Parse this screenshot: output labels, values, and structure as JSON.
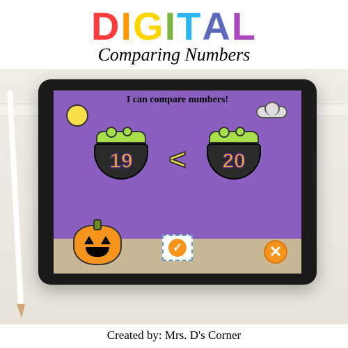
{
  "header": {
    "title_letters": [
      {
        "char": "D",
        "color": "#ff3b3b"
      },
      {
        "char": "I",
        "color": "#ff9800"
      },
      {
        "char": "G",
        "color": "#ffd600"
      },
      {
        "char": "I",
        "color": "#7cb342"
      },
      {
        "char": "T",
        "color": "#29b6f6"
      },
      {
        "char": "A",
        "color": "#5c6bc0"
      },
      {
        "char": "L",
        "color": "#ab47bc"
      }
    ],
    "subtitle": "Comparing Numbers"
  },
  "activity": {
    "prompt": "I can compare numbers!",
    "left_number": "19",
    "right_number": "20",
    "operator": "<",
    "screen_bg": "#8b5fbf",
    "ground_color": "#c9b896",
    "number_color": "#f7a73b",
    "bubble_color": "#a8e04b",
    "moon_color": "#f7e04b",
    "pumpkin_color": "#f7941d",
    "check_symbol": "✓",
    "x_symbol": "✕"
  },
  "footer": {
    "credit": "Created by: Mrs. D's Corner"
  }
}
